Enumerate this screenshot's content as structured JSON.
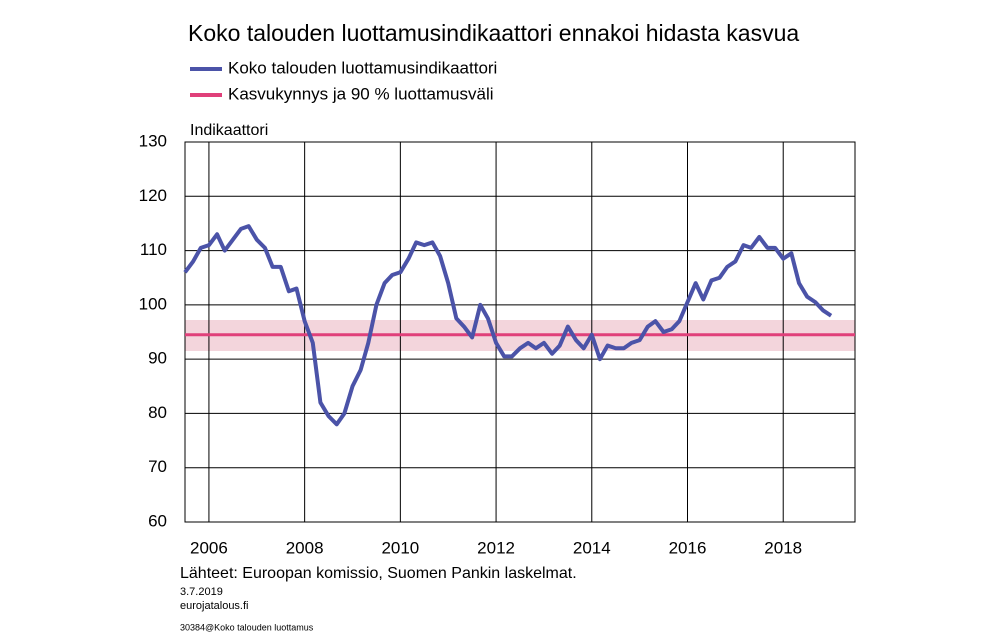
{
  "chart_data": {
    "type": "line",
    "title": "Koko talouden luottamusindikaattori ennakoi hidasta kasvua",
    "ylabel": "Indikaattori",
    "source": "Lähteet: Euroopan komissio, Suomen Pankin laskelmat.",
    "date": "3.7.2019",
    "site": "eurojatalous.fi",
    "code": "30384@Koko talouden luottamus",
    "xlim": [
      2006,
      2020
    ],
    "xticks": [
      {
        "value": 2006.5,
        "label": "2006"
      },
      {
        "value": 2008.5,
        "label": "2008"
      },
      {
        "value": 2010.5,
        "label": "2010"
      },
      {
        "value": 2012.5,
        "label": "2012"
      },
      {
        "value": 2014.5,
        "label": "2014"
      },
      {
        "value": 2016.5,
        "label": "2016"
      },
      {
        "value": 2018.5,
        "label": "2018"
      }
    ],
    "ylim": [
      60,
      130
    ],
    "yticks": [
      60,
      70,
      80,
      90,
      100,
      110,
      120,
      130
    ],
    "grid": true,
    "series": [
      {
        "name": "Koko talouden luottamusindikaattori",
        "color": "#4b53a8",
        "x": [
          2006.0,
          2006.17,
          2006.33,
          2006.5,
          2006.67,
          2006.83,
          2007.0,
          2007.17,
          2007.33,
          2007.5,
          2007.67,
          2007.83,
          2008.0,
          2008.17,
          2008.33,
          2008.5,
          2008.67,
          2008.83,
          2009.0,
          2009.17,
          2009.33,
          2009.5,
          2009.67,
          2009.83,
          2010.0,
          2010.17,
          2010.33,
          2010.5,
          2010.67,
          2010.83,
          2011.0,
          2011.17,
          2011.33,
          2011.5,
          2011.67,
          2011.83,
          2012.0,
          2012.17,
          2012.33,
          2012.5,
          2012.67,
          2012.83,
          2013.0,
          2013.17,
          2013.33,
          2013.5,
          2013.67,
          2013.83,
          2014.0,
          2014.17,
          2014.33,
          2014.5,
          2014.67,
          2014.83,
          2015.0,
          2015.17,
          2015.33,
          2015.5,
          2015.67,
          2015.83,
          2016.0,
          2016.17,
          2016.33,
          2016.5,
          2016.67,
          2016.83,
          2017.0,
          2017.17,
          2017.33,
          2017.5,
          2017.67,
          2017.83,
          2018.0,
          2018.17,
          2018.33,
          2018.5,
          2018.67,
          2018.83,
          2019.0,
          2019.17,
          2019.33,
          2019.5
        ],
        "values": [
          106,
          108,
          110.5,
          111,
          113,
          110,
          112,
          114,
          114.5,
          112,
          110.5,
          107,
          107,
          102.5,
          103,
          97,
          93,
          82,
          79.5,
          78,
          80,
          85,
          88,
          93,
          100,
          104,
          105.5,
          106,
          108.5,
          111.5,
          111,
          111.5,
          109,
          104,
          97.5,
          96,
          94,
          100,
          97.5,
          93,
          90.5,
          90.5,
          92,
          93,
          92,
          93,
          91,
          92.5,
          96,
          93.5,
          92,
          94.5,
          90,
          92.5,
          92,
          92,
          93,
          93.5,
          96,
          97,
          95,
          95.5,
          97,
          100.5,
          104,
          101,
          104.5,
          105,
          107,
          108,
          111,
          110.5,
          112.5,
          110.5,
          110.5,
          108.5,
          109.5,
          104,
          101.5,
          100.5,
          99,
          98
        ]
      },
      {
        "name": "Kasvukynnys ja 90 % luottamusväli",
        "color": "#e0407a",
        "band_color": "#f3d5dc",
        "x": [
          2006,
          2020
        ],
        "values": [
          94.5,
          94.5
        ],
        "lower": [
          91.5,
          91.5
        ],
        "upper": [
          97.2,
          97.2
        ]
      }
    ]
  }
}
